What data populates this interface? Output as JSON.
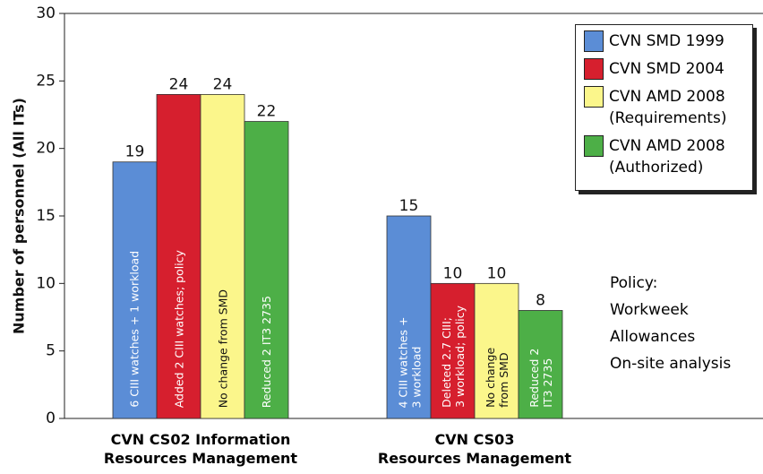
{
  "chart_data": {
    "type": "bar",
    "categories": [
      "CVN CS02 Information\nResources Management",
      "CVN CS03\nResources Management"
    ],
    "y_label": "Number of personnel (All ITs)",
    "ylim": [
      0,
      30
    ],
    "yticks": [
      0,
      5,
      10,
      15,
      20,
      25,
      30
    ],
    "legend": "upper right",
    "series": [
      {
        "name": "CVN SMD 1999",
        "color": "#5b8dd6",
        "values": [
          19,
          15
        ],
        "bar_labels": [
          "6 CIII watches + 1 workload",
          "4 CIII watches +\n3 workload"
        ]
      },
      {
        "name": "CVN SMD 2004",
        "color": "#d61f2e",
        "values": [
          24,
          10
        ],
        "bar_labels": [
          "Added 2 CIII watches; policy",
          "Deleted 2.7 CIII;\n3 workload; policy"
        ]
      },
      {
        "name": "CVN AMD 2008\n(Requirements)",
        "color": "#fbf68b",
        "values": [
          24,
          10
        ],
        "bar_labels": [
          "No change from SMD",
          "No change\nfrom SMD"
        ]
      },
      {
        "name": "CVN AMD 2008\n(Authorized)",
        "color": "#4daf47",
        "values": [
          22,
          8
        ],
        "bar_labels": [
          "Reduced 2 IT3 2735",
          "Reduced 2\nIT3 2735"
        ]
      }
    ],
    "annotation": "Policy:\nWorkweek\nAllowances\nOn-site analysis"
  }
}
